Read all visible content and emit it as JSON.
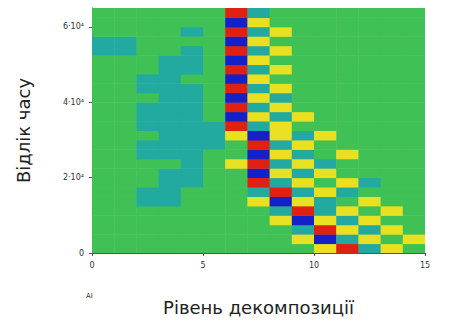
{
  "chart_data": {
    "type": "heatmap",
    "x_label": "Рівень декомпозиції",
    "y_label": "Відлік часу",
    "annotations": [
      "AI"
    ],
    "xlim": [
      0,
      15
    ],
    "xticks": [
      0,
      5,
      10,
      15
    ],
    "ylim": [
      0,
      65000
    ],
    "yticks": [
      0,
      {
        "value": 20000,
        "label": "2·10⁴"
      },
      {
        "value": 40000,
        "label": "4·10⁴"
      },
      {
        "value": 60000,
        "label": "6·10⁴"
      }
    ],
    "grid": false,
    "cells": {
      "x": [
        0.5,
        1.5,
        2.5,
        3.5,
        4.5,
        5.5,
        6.5,
        7.5,
        8.5,
        9.5,
        10.5,
        11.5,
        12.5,
        13.5,
        14.5
      ],
      "y": [
        1250,
        3750,
        6250,
        8750,
        11250,
        13750,
        16250,
        18750,
        21250,
        23750,
        26250,
        28750,
        31250,
        33750,
        36250,
        38750,
        41250,
        43750,
        46250,
        48750,
        51250,
        53750,
        56250,
        58750,
        61250,
        63750
      ],
      "z": [
        [
          0,
          0,
          0,
          0,
          0,
          0,
          0,
          0,
          0,
          0,
          1,
          2,
          -1,
          1,
          0
        ],
        [
          0,
          0,
          0,
          0,
          0,
          0,
          0,
          0,
          0,
          1,
          -2,
          -1,
          1,
          0,
          1
        ],
        [
          0,
          0,
          0,
          0,
          0,
          0,
          0,
          0,
          0,
          -1,
          2,
          1,
          -1,
          1,
          0
        ],
        [
          0,
          0,
          0,
          0,
          0,
          0,
          0,
          0,
          1,
          -2,
          1,
          -1,
          1,
          0,
          0
        ],
        [
          0,
          0,
          0,
          0,
          0,
          0,
          0,
          0,
          -1,
          2,
          -1,
          1,
          0,
          1,
          0
        ],
        [
          0,
          0,
          -1,
          -1,
          0,
          0,
          0,
          1,
          -2,
          1,
          -1,
          0,
          1,
          0,
          0
        ],
        [
          0,
          0,
          -1,
          -1,
          0,
          0,
          0,
          -1,
          2,
          -1,
          1,
          -1,
          0,
          0,
          0
        ],
        [
          0,
          0,
          0,
          -1,
          -1,
          0,
          0,
          2,
          -1,
          1,
          0,
          1,
          -1,
          0,
          0
        ],
        [
          0,
          0,
          0,
          -1,
          -1,
          0,
          0,
          -2,
          1,
          -1,
          1,
          0,
          0,
          0,
          0
        ],
        [
          0,
          0,
          0,
          0,
          -1,
          0,
          1,
          2,
          -1,
          1,
          -1,
          0,
          0,
          0,
          0
        ],
        [
          0,
          0,
          -1,
          -1,
          -1,
          0,
          0,
          -2,
          1,
          -1,
          0,
          1,
          0,
          0,
          0
        ],
        [
          0,
          0,
          -1,
          -1,
          -1,
          -1,
          0,
          2,
          -1,
          1,
          0,
          0,
          0,
          0,
          0
        ],
        [
          0,
          0,
          0,
          -1,
          -1,
          -1,
          1,
          -2,
          1,
          -1,
          1,
          0,
          0,
          0,
          0
        ],
        [
          0,
          0,
          -1,
          -1,
          -1,
          -1,
          2,
          -1,
          1,
          0,
          0,
          0,
          0,
          0,
          0
        ],
        [
          0,
          0,
          -1,
          -1,
          -1,
          0,
          -2,
          1,
          -1,
          1,
          0,
          0,
          0,
          0,
          0
        ],
        [
          0,
          0,
          -1,
          -1,
          -1,
          0,
          2,
          -1,
          1,
          0,
          0,
          0,
          0,
          0,
          0
        ],
        [
          0,
          0,
          0,
          -1,
          -1,
          0,
          -2,
          1,
          -1,
          0,
          0,
          0,
          0,
          0,
          0
        ],
        [
          0,
          0,
          -1,
          -1,
          -1,
          0,
          2,
          -1,
          1,
          0,
          0,
          0,
          0,
          0,
          0
        ],
        [
          0,
          0,
          -1,
          -1,
          0,
          0,
          -2,
          1,
          0,
          0,
          0,
          0,
          0,
          0,
          0
        ],
        [
          0,
          0,
          0,
          -1,
          -1,
          0,
          2,
          -1,
          1,
          0,
          0,
          0,
          0,
          0,
          0
        ],
        [
          0,
          0,
          0,
          -1,
          -1,
          0,
          -2,
          1,
          0,
          0,
          0,
          0,
          0,
          0,
          0
        ],
        [
          -1,
          -1,
          0,
          0,
          -1,
          0,
          2,
          -1,
          1,
          0,
          0,
          0,
          0,
          0,
          0
        ],
        [
          -1,
          -1,
          0,
          0,
          0,
          0,
          -2,
          1,
          0,
          0,
          0,
          0,
          0,
          0,
          0
        ],
        [
          0,
          0,
          0,
          0,
          -1,
          0,
          2,
          -1,
          1,
          0,
          0,
          0,
          0,
          0,
          0
        ],
        [
          0,
          0,
          0,
          0,
          0,
          0,
          -2,
          1,
          0,
          0,
          0,
          0,
          0,
          0,
          0
        ],
        [
          0,
          0,
          0,
          0,
          0,
          0,
          2,
          -1,
          0,
          0,
          0,
          0,
          0,
          0,
          0
        ]
      ],
      "zlim": [
        -2,
        2
      ]
    }
  }
}
